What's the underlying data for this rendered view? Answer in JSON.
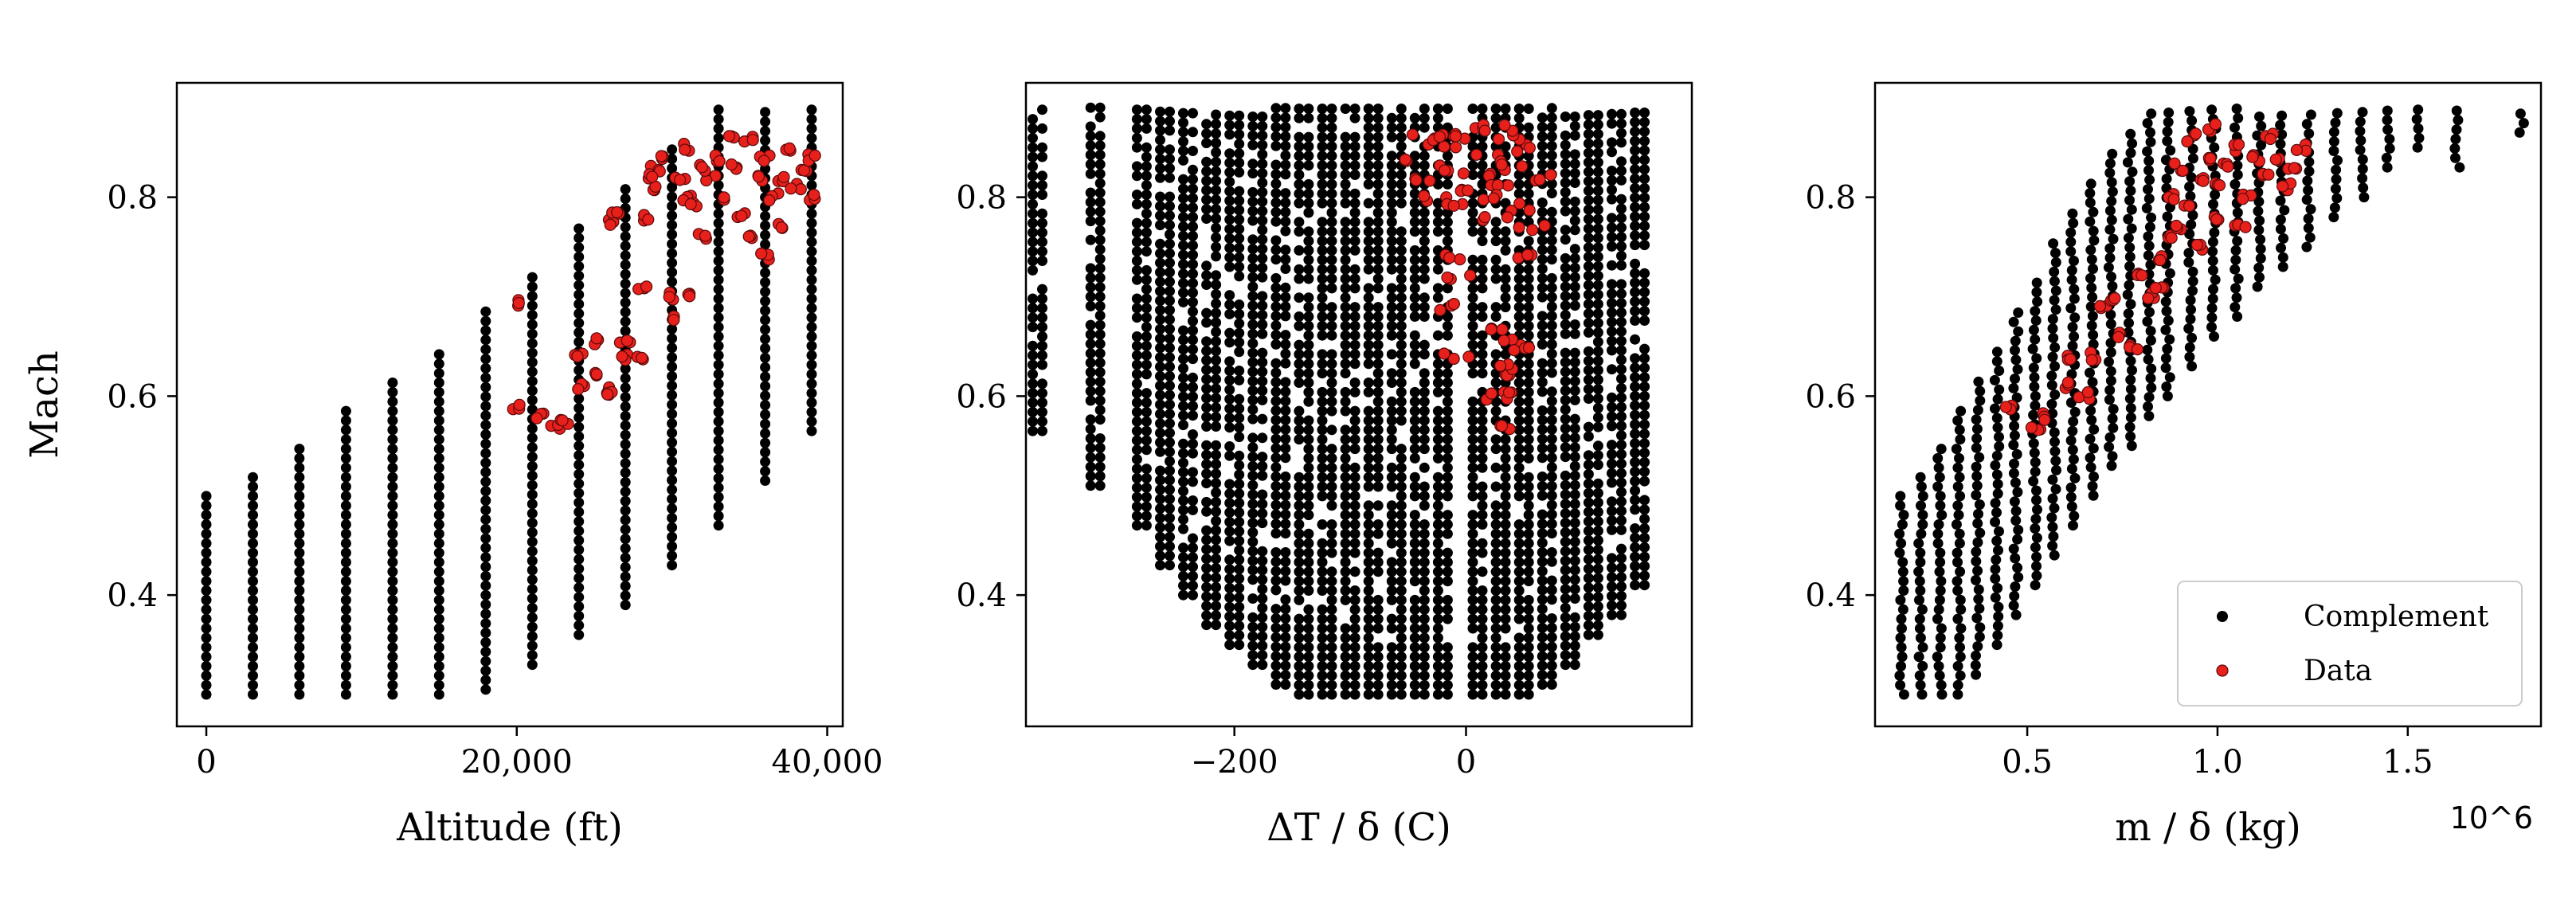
{
  "chart_data": [
    {
      "type": "scatter",
      "title": "",
      "xlabel": "Altitude (ft)",
      "ylabel": "Mach",
      "xlim": [
        -1900,
        41000
      ],
      "ylim": [
        0.268,
        0.915
      ],
      "xticks": [
        0,
        20000,
        40000
      ],
      "xtick_labels": [
        "0",
        "20,000",
        "40,000"
      ],
      "yticks": [
        0.4,
        0.6,
        0.8
      ],
      "ytick_labels": [
        "0.4",
        "0.6",
        "0.8"
      ],
      "series": [
        {
          "name": "Complement",
          "color": "#000000",
          "columns": [
            {
              "x": 0,
              "min": 0.3,
              "max": 0.5
            },
            {
              "x": 3000,
              "min": 0.3,
              "max": 0.525
            },
            {
              "x": 6000,
              "min": 0.3,
              "max": 0.555
            },
            {
              "x": 9000,
              "min": 0.3,
              "max": 0.585
            },
            {
              "x": 12000,
              "min": 0.3,
              "max": 0.615
            },
            {
              "x": 15000,
              "min": 0.3,
              "max": 0.65
            },
            {
              "x": 18000,
              "min": 0.305,
              "max": 0.685
            },
            {
              "x": 21000,
              "min": 0.33,
              "max": 0.725
            },
            {
              "x": 24000,
              "min": 0.36,
              "max": 0.77
            },
            {
              "x": 27000,
              "min": 0.39,
              "max": 0.81
            },
            {
              "x": 30000,
              "min": 0.43,
              "max": 0.855
            },
            {
              "x": 33000,
              "min": 0.47,
              "max": 0.89
            },
            {
              "x": 36000,
              "min": 0.515,
              "max": 0.89
            },
            {
              "x": 39000,
              "min": 0.565,
              "max": 0.89
            }
          ]
        },
        {
          "name": "Data",
          "color": "#e8201c",
          "points": [
            [
              20000,
              0.695
            ],
            [
              20000,
              0.59
            ],
            [
              21500,
              0.58
            ],
            [
              22500,
              0.57
            ],
            [
              23000,
              0.575
            ],
            [
              24000,
              0.64
            ],
            [
              24000,
              0.61
            ],
            [
              25000,
              0.655
            ],
            [
              25000,
              0.62
            ],
            [
              26000,
              0.605
            ],
            [
              26000,
              0.6
            ],
            [
              26000,
              0.775
            ],
            [
              26500,
              0.785
            ],
            [
              27000,
              0.64
            ],
            [
              27000,
              0.655
            ],
            [
              28000,
              0.71
            ],
            [
              28000,
              0.64
            ],
            [
              28500,
              0.78
            ],
            [
              29000,
              0.81
            ],
            [
              29000,
              0.83
            ],
            [
              30000,
              0.7
            ],
            [
              30000,
              0.68
            ],
            [
              31000,
              0.7
            ],
            [
              29500,
              0.84
            ],
            [
              30500,
              0.82
            ],
            [
              31000,
              0.8
            ],
            [
              31500,
              0.79
            ],
            [
              32000,
              0.76
            ],
            [
              32500,
              0.82
            ],
            [
              33000,
              0.84
            ],
            [
              33500,
              0.8
            ],
            [
              34000,
              0.83
            ],
            [
              34500,
              0.78
            ],
            [
              35000,
              0.76
            ],
            [
              35500,
              0.82
            ],
            [
              36000,
              0.84
            ],
            [
              36500,
              0.8
            ],
            [
              37000,
              0.82
            ],
            [
              37500,
              0.85
            ],
            [
              38000,
              0.81
            ],
            [
              38500,
              0.83
            ],
            [
              39000,
              0.84
            ],
            [
              39000,
              0.8
            ],
            [
              36000,
              0.74
            ],
            [
              34000,
              0.86
            ],
            [
              31000,
              0.85
            ],
            [
              28500,
              0.82
            ],
            [
              37000,
              0.77
            ],
            [
              35000,
              0.86
            ],
            [
              32000,
              0.83
            ]
          ]
        }
      ]
    },
    {
      "type": "scatter",
      "title": "",
      "xlabel": "ΔT / δ (C)",
      "ylabel": "",
      "xlim": [
        -380,
        195
      ],
      "ylim": [
        0.268,
        0.915
      ],
      "xticks": [
        -200,
        0
      ],
      "xtick_labels": [
        "−200",
        "0"
      ],
      "yticks": [
        0.4,
        0.6,
        0.8
      ],
      "ytick_labels": [
        "0.4",
        "0.6",
        "0.8"
      ],
      "series": [
        {
          "name": "Complement",
          "color": "#000000",
          "columns": [
            {
              "x": -370,
              "min": 0.565,
              "max": 0.89
            },
            {
              "x": -320,
              "min": 0.51,
              "max": 0.89
            },
            {
              "x": -280,
              "min": 0.47,
              "max": 0.89
            },
            {
              "x": -260,
              "min": 0.43,
              "max": 0.89
            },
            {
              "x": -240,
              "min": 0.4,
              "max": 0.89
            },
            {
              "x": -220,
              "min": 0.37,
              "max": 0.89
            },
            {
              "x": -200,
              "min": 0.35,
              "max": 0.89
            },
            {
              "x": -180,
              "min": 0.33,
              "max": 0.89
            },
            {
              "x": -160,
              "min": 0.31,
              "max": 0.89
            },
            {
              "x": -140,
              "min": 0.3,
              "max": 0.89
            },
            {
              "x": -120,
              "min": 0.3,
              "max": 0.89
            },
            {
              "x": -100,
              "min": 0.3,
              "max": 0.89
            },
            {
              "x": -80,
              "min": 0.3,
              "max": 0.89
            },
            {
              "x": -60,
              "min": 0.3,
              "max": 0.89
            },
            {
              "x": -40,
              "min": 0.3,
              "max": 0.89
            },
            {
              "x": -20,
              "min": 0.3,
              "max": 0.89
            },
            {
              "x": 10,
              "min": 0.3,
              "max": 0.89
            },
            {
              "x": 30,
              "min": 0.3,
              "max": 0.89
            },
            {
              "x": 50,
              "min": 0.3,
              "max": 0.89
            },
            {
              "x": 70,
              "min": 0.31,
              "max": 0.89
            },
            {
              "x": 90,
              "min": 0.33,
              "max": 0.89
            },
            {
              "x": 110,
              "min": 0.36,
              "max": 0.89
            },
            {
              "x": 130,
              "min": 0.38,
              "max": 0.89
            },
            {
              "x": 150,
              "min": 0.41,
              "max": 0.89
            }
          ]
        },
        {
          "name": "Data",
          "color": "#e8201c",
          "points": [
            [
              -40,
              0.84
            ],
            [
              -30,
              0.82
            ],
            [
              -20,
              0.85
            ],
            [
              -10,
              0.83
            ],
            [
              0,
              0.86
            ],
            [
              10,
              0.82
            ],
            [
              20,
              0.84
            ],
            [
              30,
              0.81
            ],
            [
              40,
              0.83
            ],
            [
              50,
              0.85
            ],
            [
              60,
              0.82
            ],
            [
              -25,
              0.8
            ],
            [
              -5,
              0.79
            ],
            [
              15,
              0.8
            ],
            [
              35,
              0.86
            ],
            [
              45,
              0.79
            ],
            [
              55,
              0.77
            ],
            [
              25,
              0.78
            ],
            [
              5,
              0.81
            ],
            [
              -15,
              0.86
            ],
            [
              -8,
              0.74
            ],
            [
              -6,
              0.72
            ],
            [
              -12,
              0.69
            ],
            [
              -10,
              0.64
            ],
            [
              45,
              0.62
            ],
            [
              30,
              0.6
            ],
            [
              35,
              0.57
            ],
            [
              40,
              0.6
            ],
            [
              42,
              0.655
            ],
            [
              50,
              0.65
            ],
            [
              25,
              0.67
            ],
            [
              32,
              0.63
            ],
            [
              58,
              0.74
            ],
            [
              -35,
              0.86
            ],
            [
              12,
              0.87
            ],
            [
              28,
              0.87
            ]
          ]
        }
      ]
    },
    {
      "type": "scatter",
      "title": "",
      "xlabel": "m / δ (kg)",
      "ylabel": "",
      "x_offset_label": "10^6",
      "xlim": [
        0.1,
        1.85
      ],
      "ylim": [
        0.268,
        0.915
      ],
      "xticks": [
        0.5,
        1.0,
        1.5
      ],
      "xtick_labels": [
        "0.5",
        "1.0",
        "1.5"
      ],
      "yticks": [
        0.4,
        0.6,
        0.8
      ],
      "ytick_labels": [
        "0.4",
        "0.6",
        "0.8"
      ],
      "legend": {
        "position": "lower-right",
        "entries": [
          "Complement",
          "Data"
        ]
      },
      "series": [
        {
          "name": "Complement",
          "color": "#000000",
          "columns": [
            {
              "x": 0.17,
              "min": 0.3,
              "max": 0.5
            },
            {
              "x": 0.22,
              "min": 0.3,
              "max": 0.525
            },
            {
              "x": 0.27,
              "min": 0.3,
              "max": 0.555
            },
            {
              "x": 0.32,
              "min": 0.3,
              "max": 0.585
            },
            {
              "x": 0.37,
              "min": 0.32,
              "max": 0.615
            },
            {
              "x": 0.42,
              "min": 0.35,
              "max": 0.65
            },
            {
              "x": 0.47,
              "min": 0.38,
              "max": 0.69
            },
            {
              "x": 0.52,
              "min": 0.41,
              "max": 0.72
            },
            {
              "x": 0.57,
              "min": 0.44,
              "max": 0.76
            },
            {
              "x": 0.62,
              "min": 0.47,
              "max": 0.79
            },
            {
              "x": 0.67,
              "min": 0.5,
              "max": 0.82
            },
            {
              "x": 0.72,
              "min": 0.53,
              "max": 0.85
            },
            {
              "x": 0.77,
              "min": 0.55,
              "max": 0.87
            },
            {
              "x": 0.82,
              "min": 0.58,
              "max": 0.89
            },
            {
              "x": 0.87,
              "min": 0.6,
              "max": 0.89
            },
            {
              "x": 0.93,
              "min": 0.63,
              "max": 0.89
            },
            {
              "x": 0.99,
              "min": 0.66,
              "max": 0.89
            },
            {
              "x": 1.05,
              "min": 0.68,
              "max": 0.89
            },
            {
              "x": 1.11,
              "min": 0.71,
              "max": 0.89
            },
            {
              "x": 1.17,
              "min": 0.73,
              "max": 0.89
            },
            {
              "x": 1.24,
              "min": 0.75,
              "max": 0.89
            },
            {
              "x": 1.31,
              "min": 0.78,
              "max": 0.89
            },
            {
              "x": 1.38,
              "min": 0.8,
              "max": 0.89
            },
            {
              "x": 1.45,
              "min": 0.83,
              "max": 0.89
            },
            {
              "x": 1.53,
              "min": 0.85,
              "max": 0.89
            },
            {
              "x": 1.63,
              "min": 0.83,
              "max": 0.89
            },
            {
              "x": 1.8,
              "min": 0.865,
              "max": 0.89
            }
          ]
        },
        {
          "name": "Data",
          "color": "#e8201c",
          "points": [
            [
              0.45,
              0.59
            ],
            [
              0.52,
              0.57
            ],
            [
              0.55,
              0.58
            ],
            [
              0.6,
              0.61
            ],
            [
              0.62,
              0.64
            ],
            [
              0.65,
              0.6
            ],
            [
              0.68,
              0.64
            ],
            [
              0.7,
              0.69
            ],
            [
              0.72,
              0.7
            ],
            [
              0.75,
              0.66
            ],
            [
              0.78,
              0.65
            ],
            [
              0.82,
              0.7
            ],
            [
              0.85,
              0.71
            ],
            [
              0.87,
              0.76
            ],
            [
              0.9,
              0.77
            ],
            [
              0.88,
              0.8
            ],
            [
              0.9,
              0.83
            ],
            [
              0.92,
              0.79
            ],
            [
              0.95,
              0.82
            ],
            [
              0.98,
              0.84
            ],
            [
              1.0,
              0.81
            ],
            [
              1.02,
              0.83
            ],
            [
              1.05,
              0.85
            ],
            [
              1.08,
              0.8
            ],
            [
              1.1,
              0.84
            ],
            [
              1.12,
              0.82
            ],
            [
              1.15,
              0.84
            ],
            [
              1.18,
              0.81
            ],
            [
              1.2,
              0.83
            ],
            [
              1.22,
              0.85
            ],
            [
              0.93,
              0.86
            ],
            [
              1.0,
              0.78
            ],
            [
              1.06,
              0.77
            ],
            [
              0.96,
              0.75
            ],
            [
              0.86,
              0.74
            ],
            [
              1.14,
              0.86
            ],
            [
              0.98,
              0.87
            ],
            [
              0.8,
              0.72
            ]
          ]
        }
      ]
    }
  ]
}
